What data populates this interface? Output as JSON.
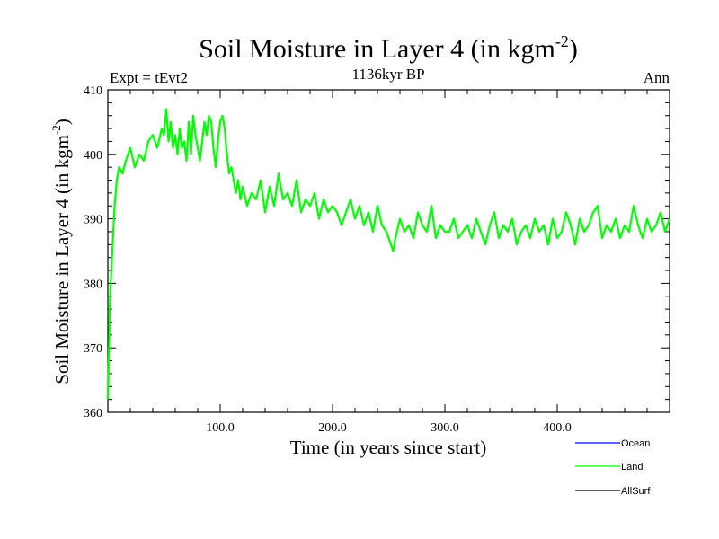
{
  "chart_data": {
    "type": "line",
    "title_main": "Soil Moisture in Layer 4 (in kgm",
    "title_sup": "-2",
    "title_close": ")",
    "subtitle_left": "Expt = tEvt2",
    "subtitle_center": "1136kyr BP",
    "subtitle_right": "Ann",
    "xlabel": "Time (in years since start)",
    "ylabel_main": "Soil Moisture in Layer 4 (in kgm",
    "ylabel_sup": "-2",
    "ylabel_close": ")",
    "xlim": [
      0,
      500
    ],
    "ylim": [
      360,
      410
    ],
    "x_ticks": [
      {
        "value": 100,
        "label": "100.0"
      },
      {
        "value": 200,
        "label": "200.0"
      },
      {
        "value": 300,
        "label": "300.0"
      },
      {
        "value": 400,
        "label": "400.0"
      }
    ],
    "y_ticks": [
      {
        "value": 360,
        "label": "360"
      },
      {
        "value": 370,
        "label": "370"
      },
      {
        "value": 380,
        "label": "380"
      },
      {
        "value": 390,
        "label": "390"
      },
      {
        "value": 400,
        "label": "400"
      },
      {
        "value": 410,
        "label": "410"
      }
    ],
    "legend": [
      {
        "name": "Ocean",
        "color": "#0000ff"
      },
      {
        "name": "Land",
        "color": "#00ff00"
      },
      {
        "name": "AllSurf",
        "color": "#000000"
      }
    ],
    "series": [
      {
        "name": "Land",
        "color": "#00ff00",
        "x": [
          0,
          2,
          4,
          6,
          8,
          10,
          13,
          16,
          20,
          24,
          28,
          32,
          36,
          40,
          44,
          48,
          50,
          52,
          54,
          56,
          58,
          60,
          62,
          64,
          66,
          68,
          70,
          72,
          74,
          76,
          78,
          80,
          82,
          84,
          86,
          88,
          90,
          92,
          94,
          96,
          98,
          100,
          102,
          104,
          106,
          108,
          110,
          112,
          114,
          116,
          118,
          120,
          124,
          128,
          132,
          136,
          140,
          144,
          148,
          152,
          156,
          160,
          164,
          168,
          172,
          176,
          180,
          184,
          188,
          192,
          196,
          200,
          204,
          208,
          212,
          216,
          220,
          224,
          228,
          232,
          236,
          240,
          244,
          248,
          252,
          254,
          256,
          260,
          264,
          268,
          272,
          276,
          280,
          284,
          288,
          292,
          296,
          300,
          304,
          308,
          312,
          316,
          320,
          324,
          328,
          332,
          336,
          340,
          344,
          348,
          352,
          356,
          360,
          364,
          368,
          372,
          376,
          380,
          384,
          388,
          392,
          396,
          400,
          404,
          408,
          412,
          416,
          420,
          424,
          428,
          432,
          436,
          440,
          444,
          448,
          452,
          456,
          460,
          464,
          468,
          472,
          476,
          480,
          484,
          488,
          492,
          496,
          500
        ],
        "values": [
          362,
          378,
          385,
          392,
          396,
          398,
          397,
          399,
          401,
          398,
          400,
          399,
          402,
          403,
          401,
          404,
          403,
          407,
          402,
          405,
          401,
          403,
          400,
          404,
          401,
          402,
          399,
          405,
          400,
          406,
          403,
          401,
          399,
          402,
          405,
          403,
          406,
          405,
          401,
          398,
          402,
          405,
          406,
          404,
          400,
          397,
          398,
          396,
          394,
          396,
          393,
          395,
          392,
          394,
          393,
          396,
          391,
          395,
          392,
          397,
          393,
          394,
          392,
          396,
          391,
          393,
          392,
          394,
          390,
          393,
          391,
          392,
          391,
          389,
          391,
          393,
          390,
          392,
          389,
          391,
          388,
          392,
          389,
          388,
          386,
          385,
          387,
          390,
          388,
          389,
          387,
          391,
          389,
          388,
          392,
          387,
          389,
          388,
          388,
          390,
          387,
          388,
          389,
          387,
          390,
          388,
          386,
          389,
          391,
          387,
          389,
          388,
          390,
          386,
          388,
          389,
          387,
          390,
          388,
          389,
          386,
          390,
          387,
          388,
          391,
          389,
          386,
          390,
          388,
          389,
          391,
          392,
          387,
          389,
          388,
          390,
          387,
          389,
          388,
          392,
          389,
          387,
          390,
          388,
          389,
          391,
          388,
          390
        ]
      }
    ]
  }
}
